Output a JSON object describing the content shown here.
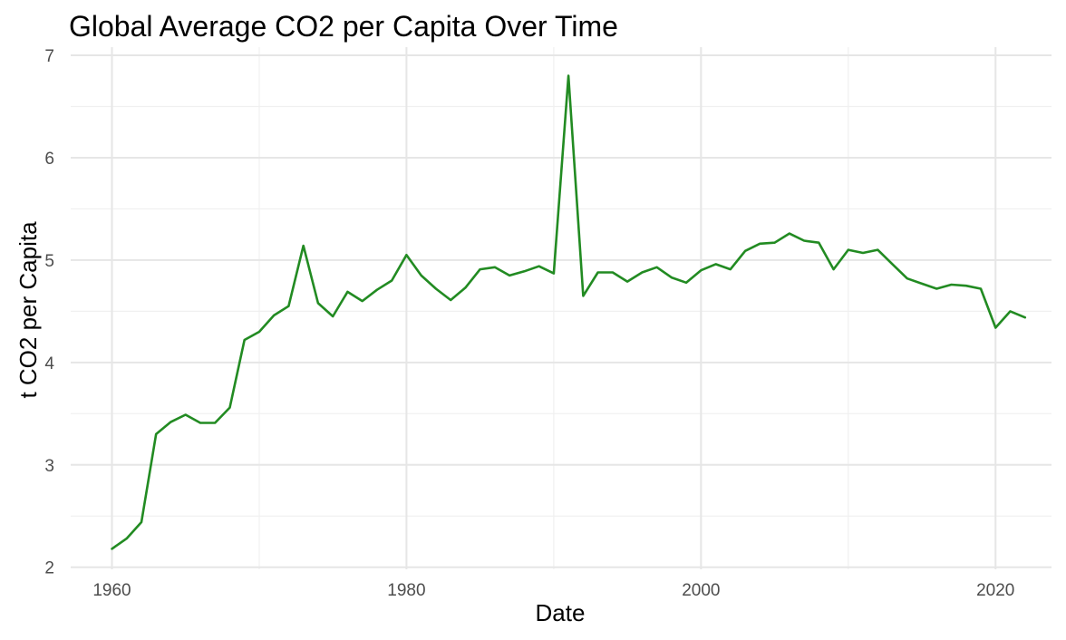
{
  "chart_data": {
    "type": "line",
    "title": "Global Average CO2 per Capita Over Time",
    "xlabel": "Date",
    "ylabel": "t CO2 per Capita",
    "xlim": [
      1957.2,
      2023.8
    ],
    "ylim": [
      1.98,
      7.08
    ],
    "x_ticks": [
      1960,
      1980,
      2000,
      2020
    ],
    "x_minor_ticks": [
      1970,
      1990,
      2010
    ],
    "y_ticks": [
      2,
      3,
      4,
      5,
      6,
      7
    ],
    "y_minor_ticks": [
      2.5,
      3.5,
      4.5,
      5.5,
      6.5
    ],
    "grid": true,
    "line_color": "#228b22",
    "series": [
      {
        "x": [
          1960,
          1961,
          1962,
          1963,
          1964,
          1965,
          1966,
          1967,
          1968,
          1969,
          1970,
          1971,
          1972,
          1973,
          1974,
          1975,
          1976,
          1977,
          1978,
          1979,
          1980,
          1981,
          1982,
          1983,
          1984,
          1985,
          1986,
          1987,
          1988,
          1989,
          1990,
          1991,
          1992,
          1993,
          1994,
          1995,
          1996,
          1997,
          1998,
          1999,
          2000,
          2001,
          2002,
          2003,
          2004,
          2005,
          2006,
          2007,
          2008,
          2009,
          2010,
          2011,
          2012,
          2013,
          2014,
          2015,
          2016,
          2017,
          2018,
          2019,
          2020,
          2021,
          2022
        ],
        "values": [
          2.18,
          2.28,
          2.44,
          3.3,
          3.42,
          3.49,
          3.41,
          3.41,
          3.56,
          4.22,
          4.3,
          4.46,
          4.55,
          5.14,
          4.58,
          4.45,
          4.69,
          4.6,
          4.71,
          4.8,
          5.05,
          4.85,
          4.72,
          4.61,
          4.73,
          4.91,
          4.93,
          4.85,
          4.89,
          4.94,
          4.87,
          6.8,
          4.65,
          4.88,
          4.88,
          4.79,
          4.88,
          4.93,
          4.83,
          4.78,
          4.9,
          4.96,
          4.91,
          5.09,
          5.16,
          5.17,
          5.26,
          5.19,
          5.17,
          4.91,
          5.1,
          5.07,
          5.1,
          4.96,
          4.82,
          4.77,
          4.72,
          4.76,
          4.75,
          4.72,
          4.34,
          4.5,
          4.44
        ]
      }
    ]
  }
}
